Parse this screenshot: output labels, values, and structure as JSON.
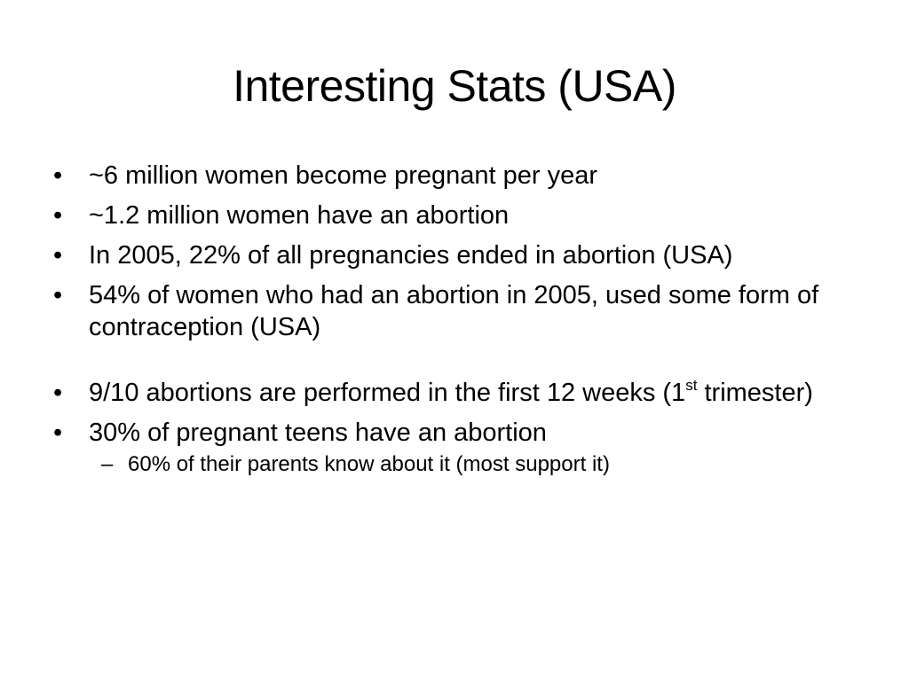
{
  "slide": {
    "title": "Interesting Stats (USA)",
    "bullet_marker": "•",
    "sub_marker": "–",
    "bullets": [
      "~6 million women become pregnant per year",
      "~1.2 million women have an abortion",
      "In 2005, 22% of all pregnancies ended in abortion (USA)",
      "54% of women who had an abortion in 2005, used some form of contraception (USA)",
      {
        "text_before": "9/10 abortions are performed in the first 12 weeks (1",
        "superscript": "st",
        "text_after": " trimester)"
      },
      "30% of pregnant teens have an abortion"
    ],
    "sub_bullets": [
      "60% of their parents know about it (most support it)"
    ]
  }
}
